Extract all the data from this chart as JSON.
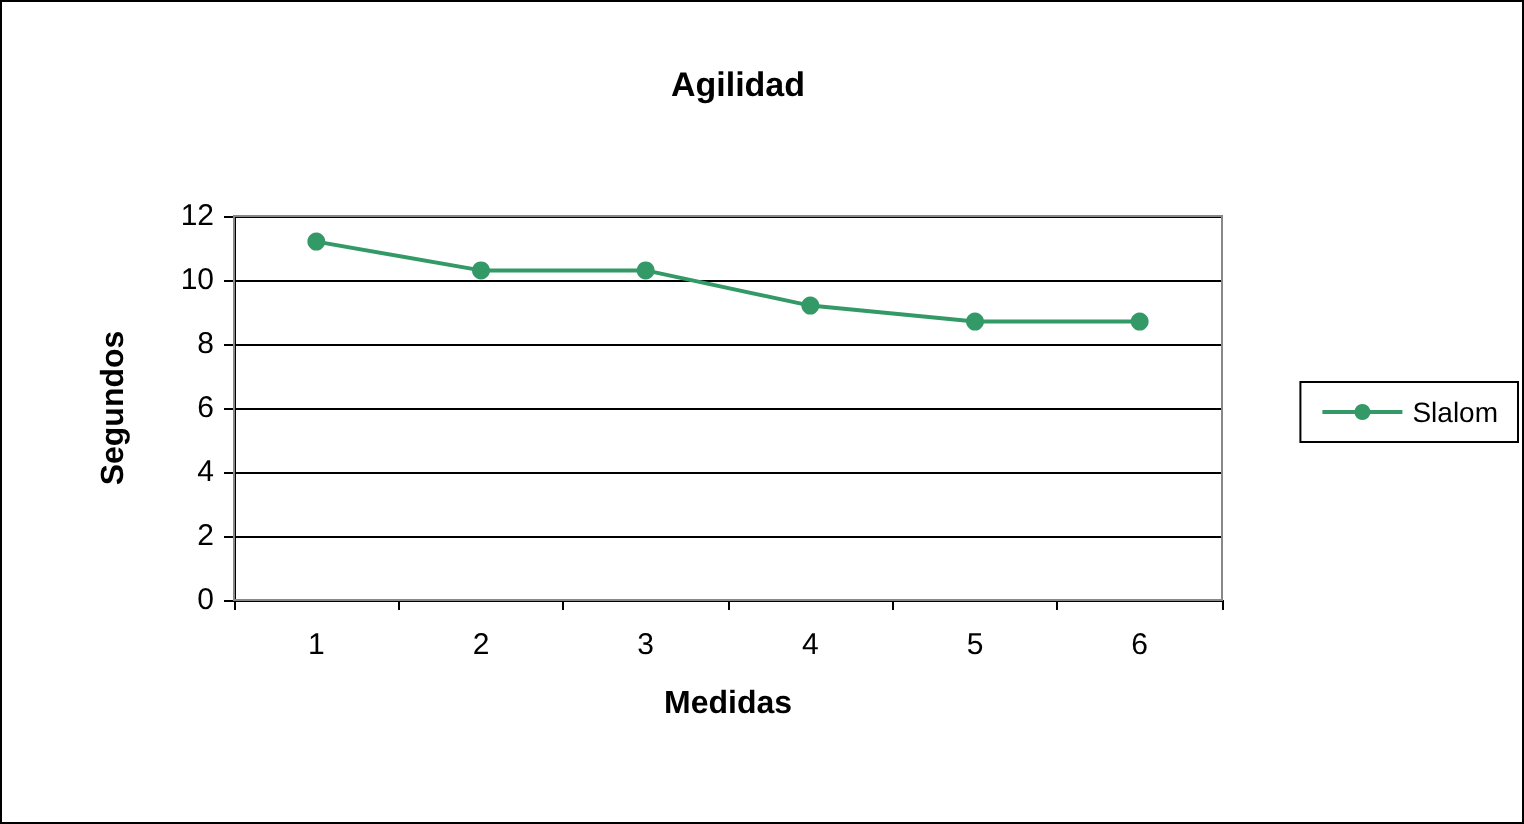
{
  "chart_data": {
    "type": "line",
    "title": "Agilidad",
    "xlabel": "Medidas",
    "ylabel": "Segundos",
    "categories": [
      "1",
      "2",
      "3",
      "4",
      "5",
      "6"
    ],
    "series": [
      {
        "name": "Slalom",
        "color": "#339966",
        "values": [
          11.2,
          10.3,
          10.3,
          9.2,
          8.7,
          8.7
        ]
      }
    ],
    "ylim": [
      0,
      12
    ],
    "yticks": [
      0,
      2,
      4,
      6,
      8,
      10,
      12
    ],
    "grid": "y",
    "legend": "right",
    "marker": "circle",
    "line_style": "solid"
  }
}
